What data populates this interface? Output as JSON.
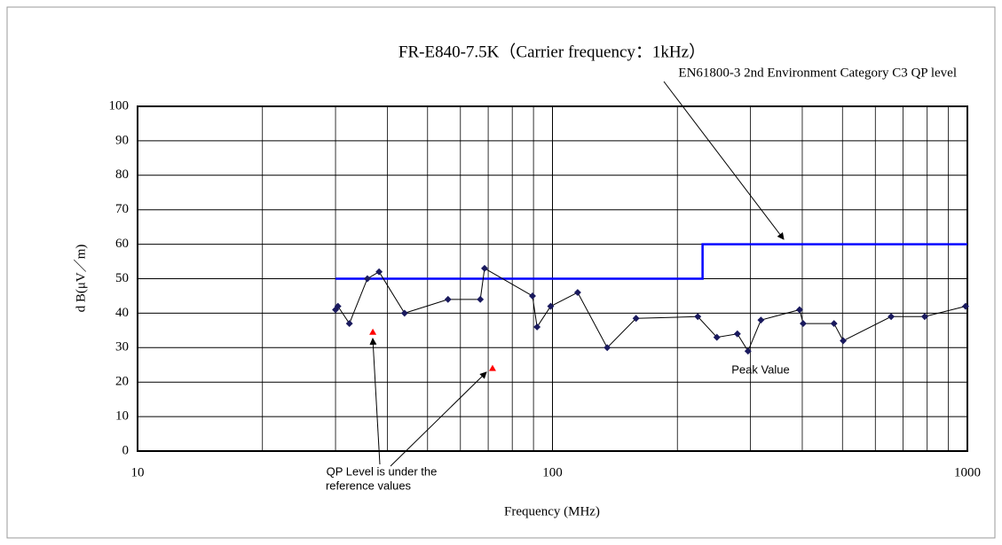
{
  "chart_data": {
    "type": "line",
    "title": "FR-E840-7.5K（Carrier frequency：1kHz）",
    "xlabel": "Frequency (MHz)",
    "ylabel": "d B(μV／m)",
    "xscale": "log",
    "xlim": [
      10,
      1000
    ],
    "xticks": [
      10,
      100,
      1000
    ],
    "xminorticks": [
      20,
      30,
      40,
      50,
      60,
      70,
      80,
      90,
      200,
      300,
      400,
      500,
      600,
      700,
      800,
      900
    ],
    "ylim": [
      0,
      100
    ],
    "yticks": [
      0,
      10,
      20,
      30,
      40,
      50,
      60,
      70,
      80,
      90,
      100
    ],
    "grid": true,
    "series": [
      {
        "name": "EN61800-3 2nd Environment Category C3 QP level",
        "color": "#0000ff",
        "style": "step",
        "x": [
          30,
          230,
          230,
          1000
        ],
        "values": [
          50,
          50,
          60,
          60
        ]
      },
      {
        "name": "Peak Value",
        "color": "#1a1a5e",
        "line_color": "#000000",
        "style": "line-marker",
        "x": [
          30,
          30.4,
          32.4,
          35.8,
          38.2,
          44,
          56,
          67,
          68.6,
          89.5,
          91.8,
          99,
          115,
          135.5,
          159,
          224,
          249,
          279,
          296,
          318,
          394,
          402,
          477,
          502,
          655,
          789,
          990
        ],
        "values": [
          41,
          42,
          37,
          50,
          52,
          40,
          44,
          44,
          53,
          45,
          36,
          42,
          46,
          30,
          38.5,
          39,
          33,
          34,
          29,
          38,
          41,
          37,
          37,
          32,
          39,
          39,
          42
        ]
      },
      {
        "name": "QP Level",
        "color": "#ff0000",
        "style": "marker",
        "x": [
          36.9,
          71.7
        ],
        "values": [
          34.5,
          24
        ]
      }
    ],
    "annotations": [
      {
        "text": "EN61800-3 2nd Environment Category C3 QP level"
      },
      {
        "text": "Peak Value"
      },
      {
        "lines": [
          "QP Level is under the",
          "reference values"
        ]
      }
    ]
  }
}
